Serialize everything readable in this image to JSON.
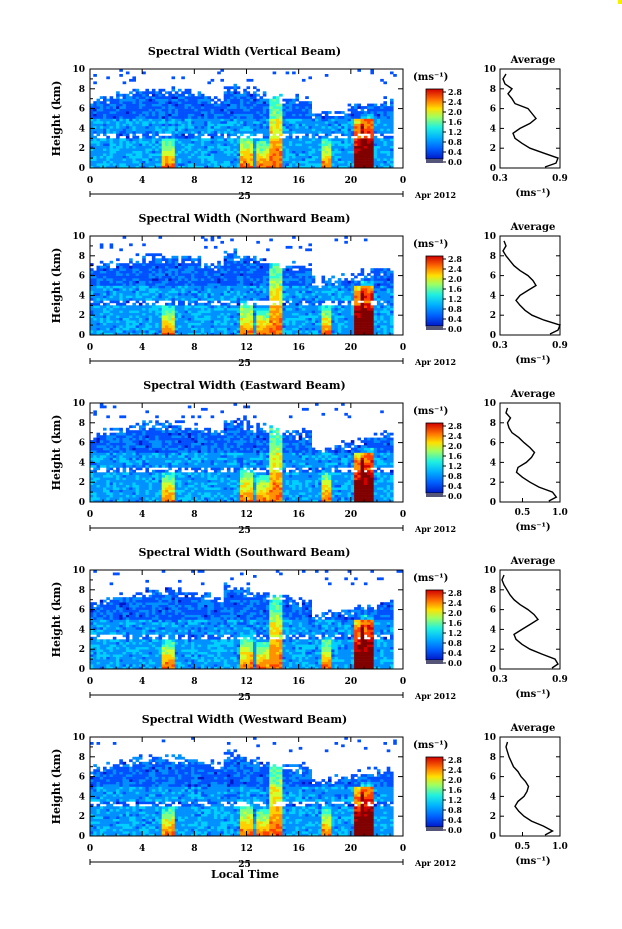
{
  "chart_data": [
    {
      "type": "heatmap",
      "title": "Spectral Width (Vertical Beam)",
      "ylabel": "Height (km)",
      "ylim": [
        0,
        10
      ],
      "xlim": [
        0,
        24
      ],
      "x_ticks": [
        "0",
        "4",
        "8",
        "12",
        "16",
        "20",
        "0"
      ],
      "y_ticks": [
        "0",
        "2",
        "4",
        "6",
        "8",
        "10"
      ],
      "date_day": "25",
      "date_month_year": "Apr 2012",
      "colorbar": {
        "unit": "(ms⁻¹)",
        "ticks": [
          "2.8",
          "2.4",
          "2.0",
          "1.6",
          "1.2",
          "0.8",
          "0.4",
          "0.0"
        ]
      },
      "profile": {
        "title": "Average",
        "xlabel": "(ms⁻¹)",
        "xlim": [
          0.3,
          0.9
        ],
        "x_ticks": [
          "0.3",
          "0.9"
        ],
        "y_ticks": [
          "0",
          "2",
          "4",
          "6",
          "8",
          "10"
        ],
        "height": [
          0.1,
          0.5,
          1,
          1.5,
          2,
          2.5,
          3,
          3.5,
          4,
          4.5,
          5,
          5.5,
          6,
          6.5,
          7,
          7.5,
          8,
          8.5,
          9,
          9.5
        ],
        "value": [
          0.75,
          0.86,
          0.88,
          0.74,
          0.6,
          0.52,
          0.45,
          0.43,
          0.5,
          0.6,
          0.66,
          0.62,
          0.58,
          0.45,
          0.42,
          0.38,
          0.42,
          0.35,
          0.33,
          0.36
        ]
      }
    },
    {
      "type": "heatmap",
      "title": "Spectral Width (Northward Beam)",
      "ylabel": "Height (km)",
      "ylim": [
        0,
        10
      ],
      "xlim": [
        0,
        24
      ],
      "x_ticks": [
        "0",
        "4",
        "8",
        "12",
        "16",
        "20",
        "0"
      ],
      "y_ticks": [
        "0",
        "2",
        "4",
        "6",
        "8",
        "10"
      ],
      "date_day": "25",
      "date_month_year": "Apr 2012",
      "colorbar": {
        "unit": "(ms⁻¹)",
        "ticks": [
          "2.8",
          "2.4",
          "2.0",
          "1.6",
          "1.2",
          "0.8",
          "0.4",
          "0.0"
        ]
      },
      "profile": {
        "title": "Average",
        "xlabel": "(ms⁻¹)",
        "xlim": [
          0.3,
          0.9
        ],
        "x_ticks": [
          "0.3",
          "0.9"
        ],
        "y_ticks": [
          "0",
          "2",
          "4",
          "6",
          "8",
          "10"
        ],
        "height": [
          0.1,
          0.5,
          1,
          1.5,
          2,
          2.5,
          3,
          3.5,
          4,
          4.5,
          5,
          5.5,
          6,
          6.5,
          7,
          7.5,
          8,
          8.5,
          9,
          9.5
        ],
        "value": [
          0.8,
          0.88,
          0.9,
          0.74,
          0.62,
          0.55,
          0.5,
          0.46,
          0.5,
          0.58,
          0.66,
          0.63,
          0.58,
          0.5,
          0.44,
          0.4,
          0.36,
          0.33,
          0.36,
          0.34
        ]
      }
    },
    {
      "type": "heatmap",
      "title": "Spectral Width (Eastward Beam)",
      "ylabel": "Height (km)",
      "ylim": [
        0,
        10
      ],
      "xlim": [
        0,
        24
      ],
      "x_ticks": [
        "0",
        "4",
        "8",
        "12",
        "16",
        "20",
        "0"
      ],
      "y_ticks": [
        "0",
        "2",
        "4",
        "6",
        "8",
        "10"
      ],
      "date_day": "25",
      "date_month_year": "Apr 2012",
      "colorbar": {
        "unit": "(ms⁻¹)",
        "ticks": [
          "2.8",
          "2.4",
          "2.0",
          "1.6",
          "1.2",
          "0.8",
          "0.4",
          "0.0"
        ]
      },
      "profile": {
        "title": "Average",
        "xlabel": "(ms⁻¹)",
        "xlim": [
          0.2,
          1.0
        ],
        "x_ticks": [
          "0.5",
          "1.0"
        ],
        "y_ticks": [
          "0",
          "2",
          "4",
          "6",
          "8",
          "10"
        ],
        "height": [
          0.1,
          0.5,
          1,
          1.5,
          2,
          2.5,
          3,
          3.5,
          4,
          4.5,
          5,
          5.5,
          6,
          6.5,
          7,
          7.5,
          8,
          8.5,
          9,
          9.5
        ],
        "value": [
          0.85,
          0.95,
          0.9,
          0.72,
          0.6,
          0.5,
          0.42,
          0.44,
          0.55,
          0.62,
          0.66,
          0.6,
          0.52,
          0.45,
          0.36,
          0.32,
          0.3,
          0.34,
          0.28,
          0.3
        ]
      }
    },
    {
      "type": "heatmap",
      "title": "Spectral Width (Southward Beam)",
      "ylabel": "Height (km)",
      "ylim": [
        0,
        10
      ],
      "xlim": [
        0,
        24
      ],
      "x_ticks": [
        "0",
        "4",
        "8",
        "12",
        "16",
        "20",
        "0"
      ],
      "y_ticks": [
        "0",
        "2",
        "4",
        "6",
        "8",
        "10"
      ],
      "date_day": "25",
      "date_month_year": "Apr 2012",
      "colorbar": {
        "unit": "(ms⁻¹)",
        "ticks": [
          "2.8",
          "2.4",
          "2.0",
          "1.6",
          "1.2",
          "0.8",
          "0.4",
          "0.0"
        ]
      },
      "profile": {
        "title": "Average",
        "xlabel": "(ms⁻¹)",
        "xlim": [
          0.3,
          0.9
        ],
        "x_ticks": [
          "0.3",
          "0.9"
        ],
        "y_ticks": [
          "0",
          "2",
          "4",
          "6",
          "8",
          "10"
        ],
        "height": [
          0.1,
          0.5,
          1,
          1.5,
          2,
          2.5,
          3,
          3.5,
          4,
          4.5,
          5,
          5.5,
          6,
          6.5,
          7,
          7.5,
          8,
          8.5,
          9,
          9.5
        ],
        "value": [
          0.82,
          0.88,
          0.85,
          0.72,
          0.6,
          0.52,
          0.46,
          0.44,
          0.52,
          0.6,
          0.68,
          0.64,
          0.58,
          0.5,
          0.44,
          0.4,
          0.37,
          0.34,
          0.32,
          0.34
        ]
      }
    },
    {
      "type": "heatmap",
      "title": "Spectral Width (Westward Beam)",
      "ylabel": "Height (km)",
      "xlabel": "Local Time",
      "ylim": [
        0,
        10
      ],
      "xlim": [
        0,
        24
      ],
      "x_ticks": [
        "0",
        "4",
        "8",
        "12",
        "16",
        "20",
        "0"
      ],
      "y_ticks": [
        "0",
        "2",
        "4",
        "6",
        "8",
        "10"
      ],
      "date_day": "25",
      "date_month_year": "Apr 2012",
      "colorbar": {
        "unit": "(ms⁻¹)",
        "ticks": [
          "2.8",
          "2.4",
          "2.0",
          "1.6",
          "1.2",
          "0.8",
          "0.4",
          "0.0"
        ]
      },
      "profile": {
        "title": "Average",
        "xlabel": "(ms⁻¹)",
        "xlim": [
          0.2,
          1.0
        ],
        "x_ticks": [
          "0.5",
          "1.0"
        ],
        "y_ticks": [
          "0",
          "2",
          "4",
          "6",
          "8",
          "10"
        ],
        "height": [
          0.1,
          0.5,
          1,
          1.5,
          2,
          2.5,
          3,
          3.5,
          4,
          4.5,
          5,
          5.5,
          6,
          6.5,
          7,
          7.5,
          8,
          8.5,
          9,
          9.5
        ],
        "value": [
          0.8,
          0.9,
          0.78,
          0.62,
          0.52,
          0.45,
          0.4,
          0.44,
          0.52,
          0.56,
          0.58,
          0.54,
          0.48,
          0.44,
          0.38,
          0.35,
          0.32,
          0.3,
          0.28,
          0.3
        ]
      }
    }
  ],
  "colors": {
    "colormap": [
      "#000080",
      "#0018c8",
      "#0050ff",
      "#0090ff",
      "#00d0ff",
      "#30ffd0",
      "#80ff80",
      "#d0ff30",
      "#ffd000",
      "#ff9000",
      "#ff4000",
      "#d00000",
      "#800000"
    ],
    "colorbar_floor": "#555577",
    "axis": "#000000",
    "background": "#ffffff"
  }
}
